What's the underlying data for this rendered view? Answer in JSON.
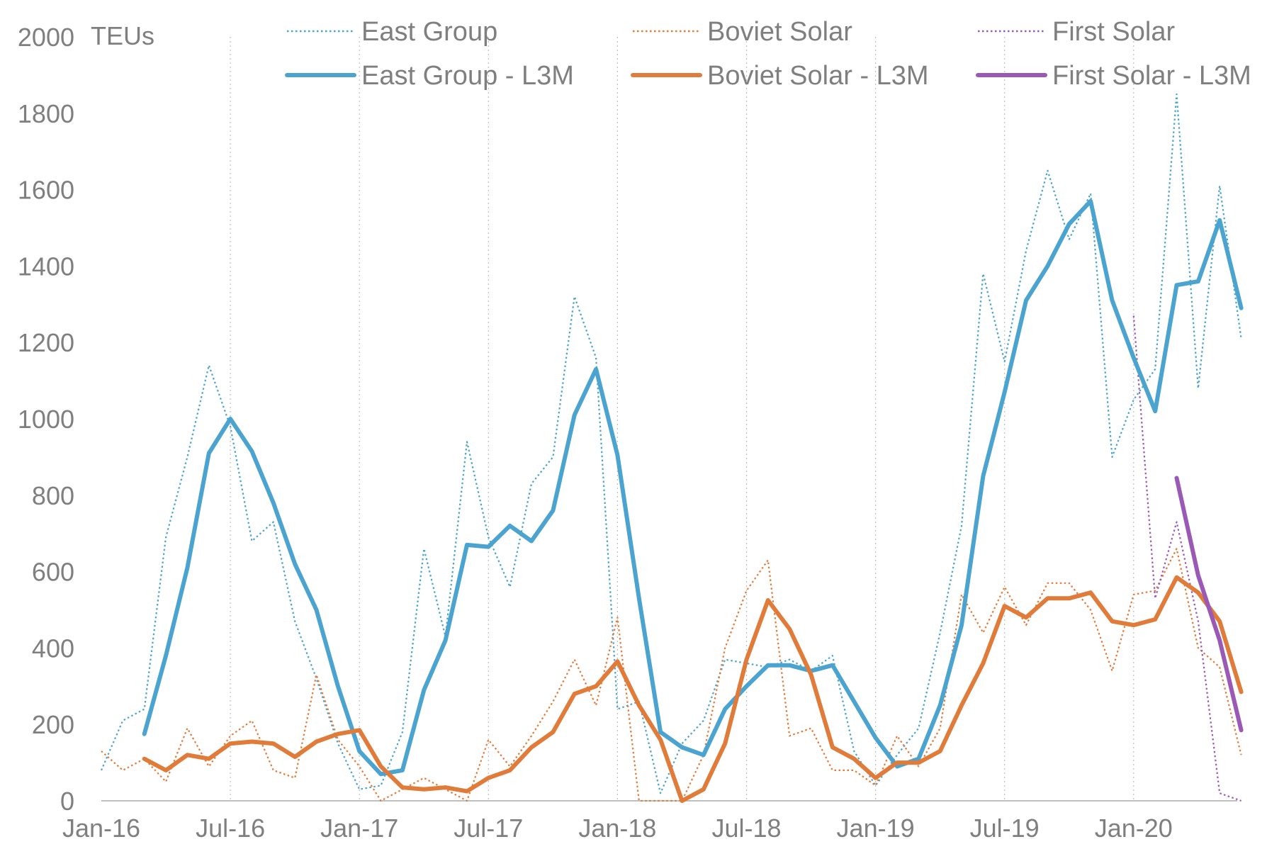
{
  "chart_data": {
    "type": "line",
    "title": "",
    "ylabel": "TEUs",
    "xlabel": "",
    "ylim": [
      0,
      2000
    ],
    "yticks": [
      "0",
      "200",
      "400",
      "600",
      "800",
      "1000",
      "1200",
      "1400",
      "1600",
      "1800",
      "2000"
    ],
    "ytick_values": [
      0,
      200,
      400,
      600,
      800,
      1000,
      1200,
      1400,
      1600,
      1800,
      2000
    ],
    "xticks": [
      "Jan-16",
      "Jul-16",
      "Jan-17",
      "Jul-17",
      "Jan-18",
      "Jul-18",
      "Jan-19",
      "Jul-19",
      "Jan-20"
    ],
    "xtick_index": [
      0,
      6,
      12,
      18,
      24,
      30,
      36,
      42,
      48
    ],
    "grid": "vertical-dotted",
    "legend_position": "top",
    "series": [
      {
        "name": "East Group",
        "style": "dotted",
        "color": "#4ba3cf",
        "start": 0,
        "values": [
          80,
          210,
          240,
          690,
          900,
          1140,
          980,
          680,
          730,
          470,
          320,
          150,
          30,
          40,
          180,
          660,
          430,
          940,
          690,
          560,
          830,
          900,
          1320,
          1160,
          240,
          260,
          20,
          150,
          210,
          370,
          360,
          350,
          370,
          340,
          380,
          130,
          40,
          120,
          190,
          440,
          720,
          1380,
          1150,
          1440,
          1650,
          1470,
          1590,
          900,
          1050,
          1130,
          1850,
          1080,
          1610,
          1210
        ]
      },
      {
        "name": "Boviet Solar",
        "style": "dotted",
        "color": "#e07b39",
        "start": 0,
        "values": [
          130,
          80,
          110,
          50,
          190,
          90,
          170,
          210,
          80,
          60,
          330,
          160,
          90,
          0,
          30,
          60,
          30,
          0,
          160,
          90,
          170,
          260,
          370,
          250,
          480,
          0,
          0,
          0,
          120,
          400,
          550,
          630,
          170,
          190,
          80,
          80,
          40,
          170,
          90,
          190,
          540,
          440,
          560,
          460,
          570,
          570,
          500,
          340,
          540,
          550,
          660,
          400,
          350,
          120
        ]
      },
      {
        "name": "First Solar",
        "style": "dotted",
        "color": "#9b59b6",
        "start": 48,
        "values": [
          1270,
          530,
          730,
          470,
          20,
          0
        ]
      },
      {
        "name": "East Group - L3M",
        "style": "solid",
        "color": "#4ba3cf",
        "start": 2,
        "values": [
          175,
          380,
          610,
          910,
          1000,
          915,
          780,
          620,
          500,
          300,
          130,
          70,
          80,
          290,
          420,
          670,
          665,
          720,
          680,
          760,
          1010,
          1130,
          905,
          530,
          180,
          140,
          120,
          240,
          300,
          355,
          355,
          340,
          355,
          260,
          165,
          90,
          110,
          250,
          460,
          850,
          1070,
          1310,
          1400,
          1510,
          1570,
          1310,
          1160,
          1020,
          1350,
          1360,
          1520,
          1290
        ]
      },
      {
        "name": "Boviet Solar - L3M",
        "style": "solid",
        "color": "#e07b39",
        "start": 2,
        "values": [
          110,
          80,
          120,
          110,
          150,
          155,
          150,
          115,
          155,
          175,
          185,
          90,
          35,
          30,
          35,
          25,
          60,
          80,
          140,
          180,
          280,
          300,
          365,
          250,
          160,
          0,
          30,
          150,
          370,
          525,
          450,
          330,
          140,
          110,
          60,
          100,
          100,
          130,
          250,
          360,
          510,
          480,
          530,
          530,
          545,
          470,
          460,
          475,
          585,
          545,
          470,
          285
        ]
      },
      {
        "name": "First Solar - L3M",
        "style": "solid",
        "color": "#9b59b6",
        "start": 50,
        "values": [
          845,
          590,
          420,
          185
        ]
      }
    ]
  }
}
